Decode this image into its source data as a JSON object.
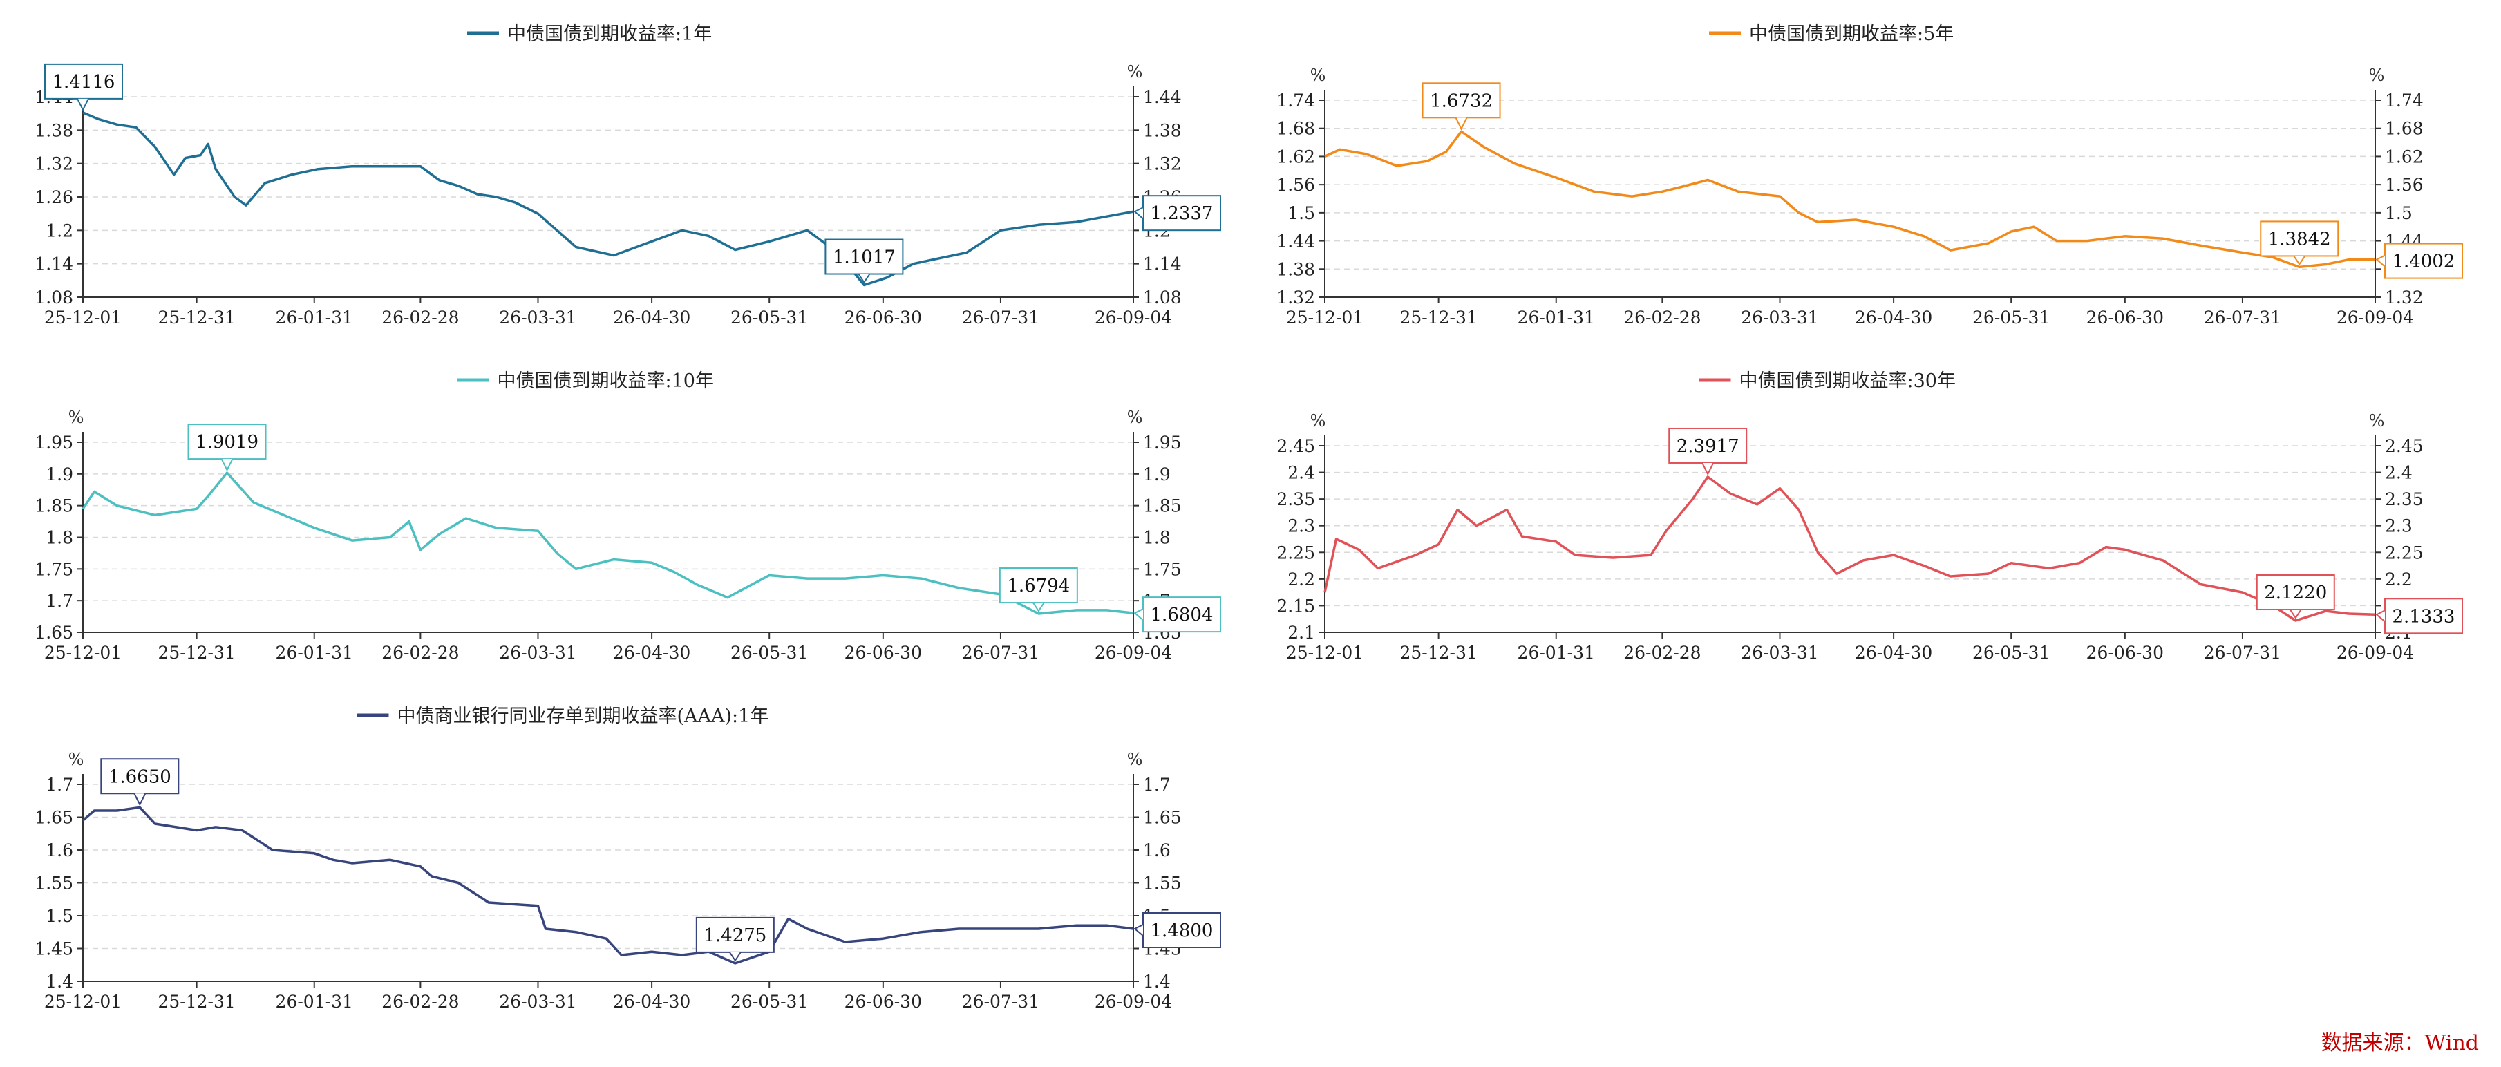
{
  "source": "数据来源：Wind",
  "chart_data": [
    {
      "type": "line",
      "title": "中债国债到期收益率:1年",
      "series": [
        {
          "name": "中债国债到期收益率:1年",
          "color": "#1f6f94"
        }
      ],
      "unit_left": "%",
      "unit_right": "%",
      "x_ticks": [
        "25-12-01",
        "25-12-31",
        "26-01-31",
        "26-02-28",
        "26-03-31",
        "26-04-30",
        "26-05-31",
        "26-06-30",
        "26-07-31",
        "26-09-04"
      ],
      "y_ticks": [
        "1.08",
        "1.14",
        "1.2",
        "1.26",
        "1.32",
        "1.38",
        "1.44"
      ],
      "ylim": [
        1.08,
        1.44
      ],
      "legend": "top-center",
      "grid": true,
      "points": [
        [
          "25-12-01",
          1.4116
        ],
        [
          "25-12-05",
          1.4
        ],
        [
          "25-12-10",
          1.39
        ],
        [
          "25-12-15",
          1.385
        ],
        [
          "25-12-20",
          1.35
        ],
        [
          "25-12-25",
          1.3
        ],
        [
          "25-12-28",
          1.33
        ],
        [
          "26-01-01",
          1.335
        ],
        [
          "26-01-03",
          1.355
        ],
        [
          "26-01-05",
          1.31
        ],
        [
          "26-01-10",
          1.26
        ],
        [
          "26-01-13",
          1.245
        ],
        [
          "26-01-18",
          1.285
        ],
        [
          "26-01-25",
          1.3
        ],
        [
          "26-02-01",
          1.31
        ],
        [
          "26-02-10",
          1.315
        ],
        [
          "26-02-20",
          1.315
        ],
        [
          "26-02-28",
          1.315
        ],
        [
          "26-03-05",
          1.29
        ],
        [
          "26-03-10",
          1.28
        ],
        [
          "26-03-15",
          1.265
        ],
        [
          "26-03-20",
          1.26
        ],
        [
          "26-03-25",
          1.25
        ],
        [
          "26-03-31",
          1.23
        ],
        [
          "26-04-05",
          1.2
        ],
        [
          "26-04-10",
          1.17
        ],
        [
          "26-04-20",
          1.155
        ],
        [
          "26-04-30",
          1.18
        ],
        [
          "26-05-08",
          1.2
        ],
        [
          "26-05-15",
          1.19
        ],
        [
          "26-05-22",
          1.165
        ],
        [
          "26-05-31",
          1.18
        ],
        [
          "26-06-10",
          1.2
        ],
        [
          "26-06-18",
          1.16
        ],
        [
          "26-06-25",
          1.1017
        ],
        [
          "26-07-01",
          1.115
        ],
        [
          "26-07-08",
          1.14
        ],
        [
          "26-07-15",
          1.15
        ],
        [
          "26-07-22",
          1.16
        ],
        [
          "26-07-31",
          1.2
        ],
        [
          "26-08-10",
          1.21
        ],
        [
          "26-08-20",
          1.215
        ],
        [
          "26-08-28",
          1.225
        ],
        [
          "26-09-04",
          1.2337
        ]
      ],
      "annotations": [
        {
          "x": "25-12-01",
          "label": "1.4116"
        },
        {
          "x": "26-06-25",
          "label": "1.1017"
        },
        {
          "x": "26-09-04",
          "label": "1.2337"
        }
      ]
    },
    {
      "type": "line",
      "title": "中债国债到期收益率:5年",
      "series": [
        {
          "name": "中债国债到期收益率:5年",
          "color": "#f28a1a"
        }
      ],
      "unit_left": "%",
      "unit_right": "%",
      "x_ticks": [
        "25-12-01",
        "25-12-31",
        "26-01-31",
        "26-02-28",
        "26-03-31",
        "26-04-30",
        "26-05-31",
        "26-06-30",
        "26-07-31",
        "26-09-04"
      ],
      "y_ticks": [
        "1.32",
        "1.38",
        "1.44",
        "1.5",
        "1.56",
        "1.62",
        "1.68",
        "1.74"
      ],
      "ylim": [
        1.32,
        1.74
      ],
      "legend": "top-center",
      "grid": true,
      "points": [
        [
          "25-12-01",
          1.62
        ],
        [
          "25-12-05",
          1.635
        ],
        [
          "25-12-12",
          1.625
        ],
        [
          "25-12-20",
          1.6
        ],
        [
          "25-12-28",
          1.61
        ],
        [
          "26-01-02",
          1.63
        ],
        [
          "26-01-06",
          1.6732
        ],
        [
          "26-01-12",
          1.64
        ],
        [
          "26-01-20",
          1.605
        ],
        [
          "26-01-31",
          1.575
        ],
        [
          "26-02-10",
          1.545
        ],
        [
          "26-02-20",
          1.535
        ],
        [
          "26-02-28",
          1.545
        ],
        [
          "26-03-05",
          1.555
        ],
        [
          "26-03-12",
          1.57
        ],
        [
          "26-03-20",
          1.545
        ],
        [
          "26-03-31",
          1.535
        ],
        [
          "26-04-05",
          1.5
        ],
        [
          "26-04-10",
          1.48
        ],
        [
          "26-04-20",
          1.485
        ],
        [
          "26-04-30",
          1.47
        ],
        [
          "26-05-08",
          1.45
        ],
        [
          "26-05-15",
          1.42
        ],
        [
          "26-05-25",
          1.435
        ],
        [
          "26-05-31",
          1.46
        ],
        [
          "26-06-06",
          1.47
        ],
        [
          "26-06-12",
          1.44
        ],
        [
          "26-06-20",
          1.44
        ],
        [
          "26-06-30",
          1.45
        ],
        [
          "26-07-10",
          1.445
        ],
        [
          "26-07-20",
          1.43
        ],
        [
          "26-07-31",
          1.415
        ],
        [
          "26-08-08",
          1.405
        ],
        [
          "26-08-15",
          1.3842
        ],
        [
          "26-08-22",
          1.39
        ],
        [
          "26-08-28",
          1.4
        ],
        [
          "26-09-04",
          1.4002
        ]
      ],
      "annotations": [
        {
          "x": "26-01-06",
          "label": "1.6732"
        },
        {
          "x": "26-08-15",
          "label": "1.3842"
        },
        {
          "x": "26-09-04",
          "label": "1.4002"
        }
      ]
    },
    {
      "type": "line",
      "title": "中债国债到期收益率:10年",
      "series": [
        {
          "name": "中债国债到期收益率:10年",
          "color": "#4cbfc0"
        }
      ],
      "unit_left": "%",
      "unit_right": "%",
      "x_ticks": [
        "25-12-01",
        "25-12-31",
        "26-01-31",
        "26-02-28",
        "26-03-31",
        "26-04-30",
        "26-05-31",
        "26-06-30",
        "26-07-31",
        "26-09-04"
      ],
      "y_ticks": [
        "1.65",
        "1.7",
        "1.75",
        "1.8",
        "1.85",
        "1.9",
        "1.95"
      ],
      "ylim": [
        1.65,
        1.95
      ],
      "legend": "top-center",
      "grid": true,
      "points": [
        [
          "25-12-01",
          1.845
        ],
        [
          "25-12-04",
          1.872
        ],
        [
          "25-12-10",
          1.85
        ],
        [
          "25-12-20",
          1.835
        ],
        [
          "25-12-31",
          1.845
        ],
        [
          "26-01-03",
          1.865
        ],
        [
          "26-01-08",
          1.9019
        ],
        [
          "26-01-15",
          1.855
        ],
        [
          "26-01-25",
          1.83
        ],
        [
          "26-01-31",
          1.815
        ],
        [
          "26-02-10",
          1.795
        ],
        [
          "26-02-20",
          1.8
        ],
        [
          "26-02-25",
          1.825
        ],
        [
          "26-02-28",
          1.78
        ],
        [
          "26-03-05",
          1.805
        ],
        [
          "26-03-12",
          1.83
        ],
        [
          "26-03-20",
          1.815
        ],
        [
          "26-03-31",
          1.81
        ],
        [
          "26-04-05",
          1.775
        ],
        [
          "26-04-10",
          1.75
        ],
        [
          "26-04-20",
          1.765
        ],
        [
          "26-04-30",
          1.76
        ],
        [
          "26-05-06",
          1.745
        ],
        [
          "26-05-12",
          1.725
        ],
        [
          "26-05-20",
          1.705
        ],
        [
          "26-05-31",
          1.74
        ],
        [
          "26-06-10",
          1.735
        ],
        [
          "26-06-20",
          1.735
        ],
        [
          "26-06-30",
          1.74
        ],
        [
          "26-07-10",
          1.735
        ],
        [
          "26-07-20",
          1.72
        ],
        [
          "26-07-31",
          1.71
        ],
        [
          "26-08-10",
          1.6794
        ],
        [
          "26-08-20",
          1.685
        ],
        [
          "26-08-28",
          1.685
        ],
        [
          "26-09-04",
          1.6804
        ]
      ],
      "annotations": [
        {
          "x": "26-01-08",
          "label": "1.9019"
        },
        {
          "x": "26-08-10",
          "label": "1.6794"
        },
        {
          "x": "26-09-04",
          "label": "1.6804"
        }
      ]
    },
    {
      "type": "line",
      "title": "中债国债到期收益率:30年",
      "series": [
        {
          "name": "中债国债到期收益率:30年",
          "color": "#e05257"
        }
      ],
      "unit_left": "%",
      "unit_right": "%",
      "x_ticks": [
        "25-12-01",
        "25-12-31",
        "26-01-31",
        "26-02-28",
        "26-03-31",
        "26-04-30",
        "26-05-31",
        "26-06-30",
        "26-07-31",
        "26-09-04"
      ],
      "y_ticks": [
        "2.1",
        "2.15",
        "2.2",
        "2.25",
        "2.3",
        "2.35",
        "2.4",
        "2.45"
      ],
      "ylim": [
        2.1,
        2.45
      ],
      "legend": "top-center",
      "grid": true,
      "points": [
        [
          "25-12-01",
          2.175
        ],
        [
          "25-12-04",
          2.275
        ],
        [
          "25-12-10",
          2.255
        ],
        [
          "25-12-15",
          2.22
        ],
        [
          "25-12-25",
          2.245
        ],
        [
          "25-12-31",
          2.265
        ],
        [
          "26-01-05",
          2.33
        ],
        [
          "26-01-10",
          2.3
        ],
        [
          "26-01-18",
          2.33
        ],
        [
          "26-01-22",
          2.28
        ],
        [
          "26-01-31",
          2.27
        ],
        [
          "26-02-05",
          2.245
        ],
        [
          "26-02-15",
          2.24
        ],
        [
          "26-02-25",
          2.245
        ],
        [
          "26-03-01",
          2.29
        ],
        [
          "26-03-08",
          2.35
        ],
        [
          "26-03-12",
          2.3917
        ],
        [
          "26-03-18",
          2.36
        ],
        [
          "26-03-25",
          2.34
        ],
        [
          "26-03-31",
          2.37
        ],
        [
          "26-04-05",
          2.33
        ],
        [
          "26-04-10",
          2.25
        ],
        [
          "26-04-15",
          2.21
        ],
        [
          "26-04-22",
          2.235
        ],
        [
          "26-04-30",
          2.245
        ],
        [
          "26-05-08",
          2.225
        ],
        [
          "26-05-15",
          2.205
        ],
        [
          "26-05-25",
          2.21
        ],
        [
          "26-05-31",
          2.23
        ],
        [
          "26-06-10",
          2.22
        ],
        [
          "26-06-18",
          2.23
        ],
        [
          "26-06-25",
          2.26
        ],
        [
          "26-06-30",
          2.255
        ],
        [
          "26-07-10",
          2.235
        ],
        [
          "26-07-20",
          2.19
        ],
        [
          "26-07-31",
          2.175
        ],
        [
          "26-08-08",
          2.15
        ],
        [
          "26-08-14",
          2.122
        ],
        [
          "26-08-22",
          2.14
        ],
        [
          "26-08-28",
          2.135
        ],
        [
          "26-09-04",
          2.1333
        ]
      ],
      "annotations": [
        {
          "x": "26-03-12",
          "label": "2.3917"
        },
        {
          "x": "26-08-14",
          "label": "2.1220"
        },
        {
          "x": "26-09-04",
          "label": "2.1333"
        }
      ]
    },
    {
      "type": "line",
      "title": "中债商业银行同业存单到期收益率(AAA):1年",
      "series": [
        {
          "name": "中债商业银行同业存单到期收益率(AAA):1年",
          "color": "#38457d"
        }
      ],
      "unit_left": "%",
      "unit_right": "%",
      "x_ticks": [
        "25-12-01",
        "25-12-31",
        "26-01-31",
        "26-02-28",
        "26-03-31",
        "26-04-30",
        "26-05-31",
        "26-06-30",
        "26-07-31",
        "26-09-04"
      ],
      "y_ticks": [
        "1.4",
        "1.45",
        "1.5",
        "1.55",
        "1.6",
        "1.65",
        "1.7"
      ],
      "ylim": [
        1.4,
        1.7
      ],
      "legend": "top-center",
      "grid": true,
      "points": [
        [
          "25-12-01",
          1.645
        ],
        [
          "25-12-04",
          1.66
        ],
        [
          "25-12-10",
          1.66
        ],
        [
          "25-12-16",
          1.665
        ],
        [
          "25-12-20",
          1.64
        ],
        [
          "25-12-31",
          1.63
        ],
        [
          "26-01-05",
          1.635
        ],
        [
          "26-01-12",
          1.63
        ],
        [
          "26-01-20",
          1.6
        ],
        [
          "26-01-31",
          1.595
        ],
        [
          "26-02-05",
          1.585
        ],
        [
          "26-02-10",
          1.58
        ],
        [
          "26-02-20",
          1.585
        ],
        [
          "26-02-28",
          1.575
        ],
        [
          "26-03-03",
          1.56
        ],
        [
          "26-03-10",
          1.55
        ],
        [
          "26-03-18",
          1.52
        ],
        [
          "26-03-31",
          1.515
        ],
        [
          "26-04-02",
          1.48
        ],
        [
          "26-04-10",
          1.475
        ],
        [
          "26-04-18",
          1.465
        ],
        [
          "26-04-22",
          1.44
        ],
        [
          "26-04-30",
          1.445
        ],
        [
          "26-05-08",
          1.44
        ],
        [
          "26-05-15",
          1.445
        ],
        [
          "26-05-22",
          1.4275
        ],
        [
          "26-05-31",
          1.445
        ],
        [
          "26-06-05",
          1.495
        ],
        [
          "26-06-10",
          1.48
        ],
        [
          "26-06-20",
          1.46
        ],
        [
          "26-06-30",
          1.465
        ],
        [
          "26-07-10",
          1.475
        ],
        [
          "26-07-20",
          1.48
        ],
        [
          "26-07-31",
          1.48
        ],
        [
          "26-08-10",
          1.48
        ],
        [
          "26-08-20",
          1.485
        ],
        [
          "26-08-28",
          1.485
        ],
        [
          "26-09-04",
          1.48
        ]
      ],
      "annotations": [
        {
          "x": "25-12-16",
          "label": "1.6650"
        },
        {
          "x": "26-05-22",
          "label": "1.4275"
        },
        {
          "x": "26-09-04",
          "label": "1.4800"
        }
      ]
    }
  ]
}
